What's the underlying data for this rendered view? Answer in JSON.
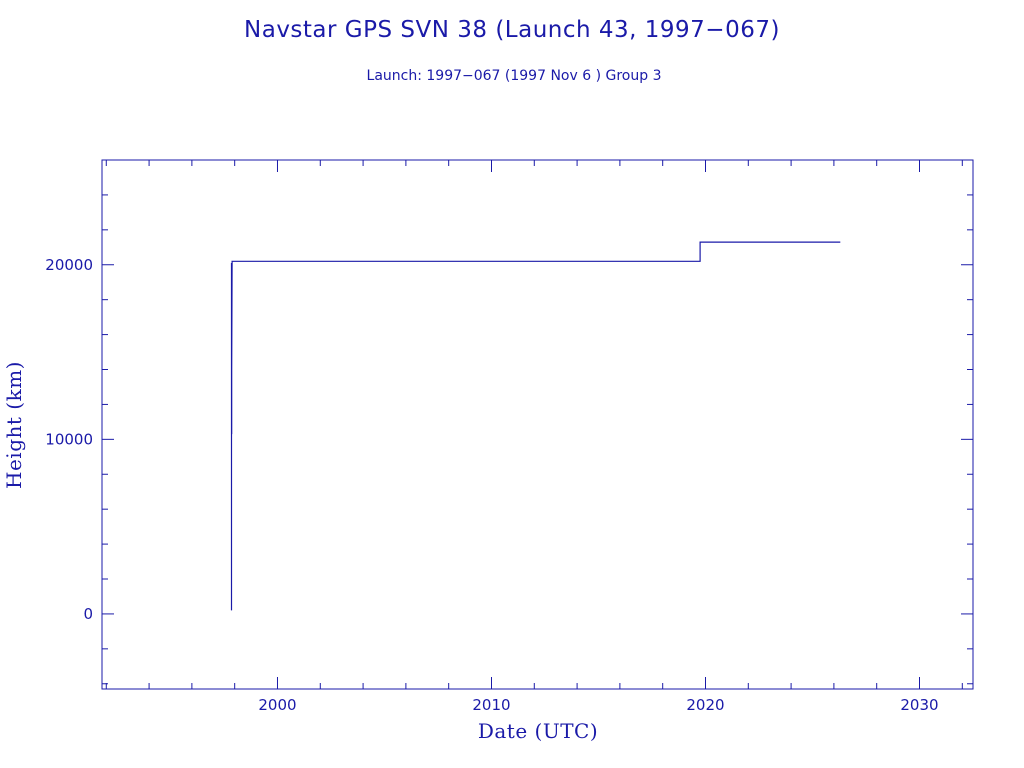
{
  "colors": {
    "ink": "#1a1aa8",
    "background": "#ffffff"
  },
  "chart_data": {
    "type": "line",
    "title": "Navstar GPS SVN 38 (Launch 43, 1997−067)",
    "subtitle": "Launch: 1997−067  (1997 Nov  6 )  Group 3",
    "xlabel": "Date (UTC)",
    "ylabel": "Height (km)",
    "xlim": [
      1991.8,
      2032.5
    ],
    "ylim": [
      -4300,
      26000
    ],
    "grid": false,
    "x_ticks_major": [
      2000,
      2010,
      2020,
      2030
    ],
    "x_tick_labels": [
      "2000",
      "2010",
      "2020",
      "2030"
    ],
    "x_ticks_minor_step": 2,
    "y_ticks_major": [
      0,
      10000,
      20000
    ],
    "y_tick_labels": [
      "0",
      "10000",
      "20000"
    ],
    "y_ticks_minor_step": 2000,
    "series": [
      {
        "points": [
          {
            "x": 1997.85,
            "y": 200
          },
          {
            "x": 1997.85,
            "y": 20100
          },
          {
            "x": 1997.86,
            "y": 10300
          },
          {
            "x": 1997.86,
            "y": 13900
          },
          {
            "x": 1997.88,
            "y": 20200
          },
          {
            "x": 1997.9,
            "y": 20200
          },
          {
            "x": 2019.75,
            "y": 20200
          },
          {
            "x": 2019.75,
            "y": 21300
          },
          {
            "x": 2026.3,
            "y": 21300
          }
        ]
      }
    ]
  }
}
